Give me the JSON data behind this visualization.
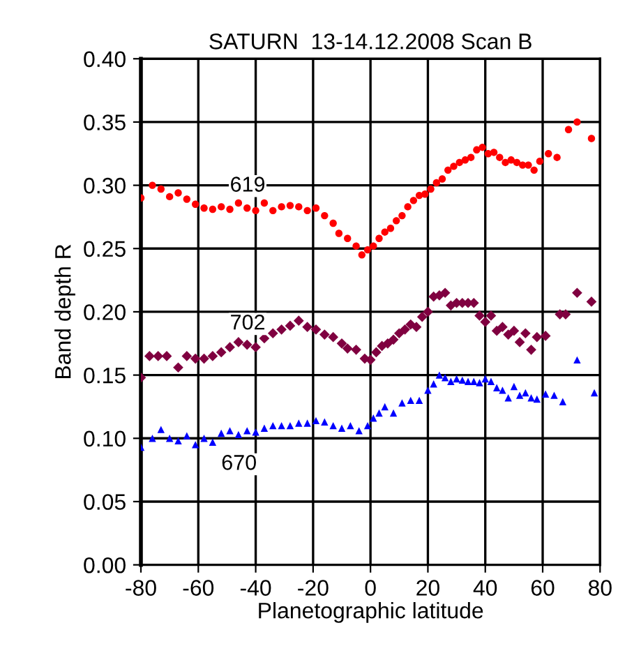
{
  "chart_data": {
    "type": "scatter",
    "title": "SATURN  13-14.12.2008 Scan B",
    "xlabel": "Planetographic latitude",
    "ylabel": "Band depth R",
    "xlim": [
      -80,
      80
    ],
    "xticks": [
      -80,
      -60,
      -40,
      -20,
      0,
      20,
      40,
      60,
      80
    ],
    "ylim": [
      0,
      0.4
    ],
    "yticks": [
      {
        "value": 0,
        "label": "0.00"
      },
      {
        "value": 0.05,
        "label": "0.05"
      },
      {
        "value": 0.1,
        "label": "0.10"
      },
      {
        "value": 0.15,
        "label": "0.15"
      },
      {
        "value": 0.2,
        "label": "0.20"
      },
      {
        "value": 0.25,
        "label": "0.25"
      },
      {
        "value": 0.3,
        "label": "0.30"
      },
      {
        "value": 0.35,
        "label": "0.35"
      },
      {
        "value": 0.4,
        "label": "0.40"
      }
    ],
    "grid": true,
    "series": [
      {
        "name": "619",
        "color": "#ff0000",
        "marker": "circle",
        "x": [
          -80,
          -76,
          -73,
          -70,
          -67,
          -64,
          -61,
          -58,
          -55,
          -52,
          -49,
          -46,
          -43,
          -40,
          -37,
          -34,
          -31,
          -28,
          -25,
          -22,
          -19,
          -16,
          -13,
          -11,
          -8,
          -5,
          -3,
          -1,
          1,
          3,
          5,
          7,
          9,
          11,
          13,
          15,
          17,
          19,
          21,
          23,
          25,
          27,
          29,
          31,
          33,
          35,
          37,
          39,
          41,
          43,
          45,
          47,
          49,
          51,
          53,
          55,
          57,
          59,
          62,
          65,
          69,
          72,
          77
        ],
        "values": [
          0.29,
          0.3,
          0.297,
          0.291,
          0.294,
          0.289,
          0.285,
          0.282,
          0.281,
          0.283,
          0.281,
          0.286,
          0.282,
          0.28,
          0.286,
          0.28,
          0.283,
          0.284,
          0.283,
          0.28,
          0.282,
          0.276,
          0.27,
          0.262,
          0.258,
          0.252,
          0.245,
          0.249,
          0.252,
          0.258,
          0.263,
          0.266,
          0.272,
          0.276,
          0.283,
          0.288,
          0.292,
          0.293,
          0.297,
          0.302,
          0.305,
          0.312,
          0.315,
          0.318,
          0.32,
          0.322,
          0.328,
          0.33,
          0.325,
          0.326,
          0.322,
          0.318,
          0.32,
          0.318,
          0.316,
          0.316,
          0.312,
          0.319,
          0.325,
          0.322,
          0.344,
          0.35,
          0.337
        ]
      },
      {
        "name": "702",
        "color": "#800040",
        "marker": "diamond",
        "x": [
          -80,
          -77,
          -74,
          -71,
          -67,
          -64,
          -61,
          -58,
          -55,
          -52,
          -49,
          -46,
          -43,
          -40,
          -37,
          -34,
          -31,
          -28,
          -25,
          -22,
          -19,
          -16,
          -13,
          -10,
          -8,
          -5,
          -2,
          0,
          2,
          4,
          6,
          8,
          10,
          12,
          14,
          16,
          18,
          20,
          22,
          24,
          26,
          28,
          30,
          32,
          34,
          36,
          38,
          40,
          42,
          44,
          46,
          48,
          50,
          52,
          54,
          56,
          58,
          61,
          66,
          68,
          72,
          77
        ],
        "values": [
          0.148,
          0.165,
          0.165,
          0.165,
          0.156,
          0.165,
          0.163,
          0.163,
          0.165,
          0.168,
          0.172,
          0.176,
          0.174,
          0.172,
          0.179,
          0.183,
          0.186,
          0.189,
          0.193,
          0.188,
          0.186,
          0.182,
          0.18,
          0.175,
          0.171,
          0.17,
          0.163,
          0.162,
          0.168,
          0.173,
          0.175,
          0.178,
          0.183,
          0.186,
          0.19,
          0.188,
          0.196,
          0.2,
          0.212,
          0.213,
          0.215,
          0.205,
          0.207,
          0.207,
          0.207,
          0.207,
          0.197,
          0.192,
          0.197,
          0.185,
          0.188,
          0.182,
          0.185,
          0.176,
          0.183,
          0.17,
          0.18,
          0.181,
          0.198,
          0.198,
          0.215,
          0.208
        ]
      },
      {
        "name": "670",
        "color": "#0000ff",
        "marker": "triangle",
        "x": [
          -80,
          -76,
          -73,
          -70,
          -67,
          -64,
          -61,
          -58,
          -55,
          -52,
          -49,
          -46,
          -43,
          -40,
          -37,
          -34,
          -31,
          -28,
          -25,
          -22,
          -19,
          -16,
          -13,
          -10,
          -7,
          -4,
          -1,
          1,
          3,
          5,
          8,
          11,
          14,
          17,
          20,
          22,
          24,
          26,
          28,
          30,
          32,
          34,
          36,
          38,
          40,
          42,
          44,
          46,
          48,
          50,
          52,
          54,
          56,
          58,
          61,
          64,
          67,
          72,
          78
        ],
        "values": [
          0.093,
          0.1,
          0.107,
          0.1,
          0.098,
          0.102,
          0.095,
          0.1,
          0.097,
          0.104,
          0.106,
          0.103,
          0.106,
          0.105,
          0.108,
          0.11,
          0.11,
          0.11,
          0.112,
          0.112,
          0.114,
          0.113,
          0.11,
          0.108,
          0.11,
          0.106,
          0.11,
          0.116,
          0.12,
          0.125,
          0.12,
          0.128,
          0.13,
          0.13,
          0.138,
          0.143,
          0.15,
          0.148,
          0.145,
          0.147,
          0.146,
          0.145,
          0.145,
          0.144,
          0.147,
          0.145,
          0.14,
          0.138,
          0.132,
          0.141,
          0.134,
          0.136,
          0.132,
          0.131,
          0.135,
          0.134,
          0.129,
          0.162,
          0.136
        ]
      }
    ]
  }
}
